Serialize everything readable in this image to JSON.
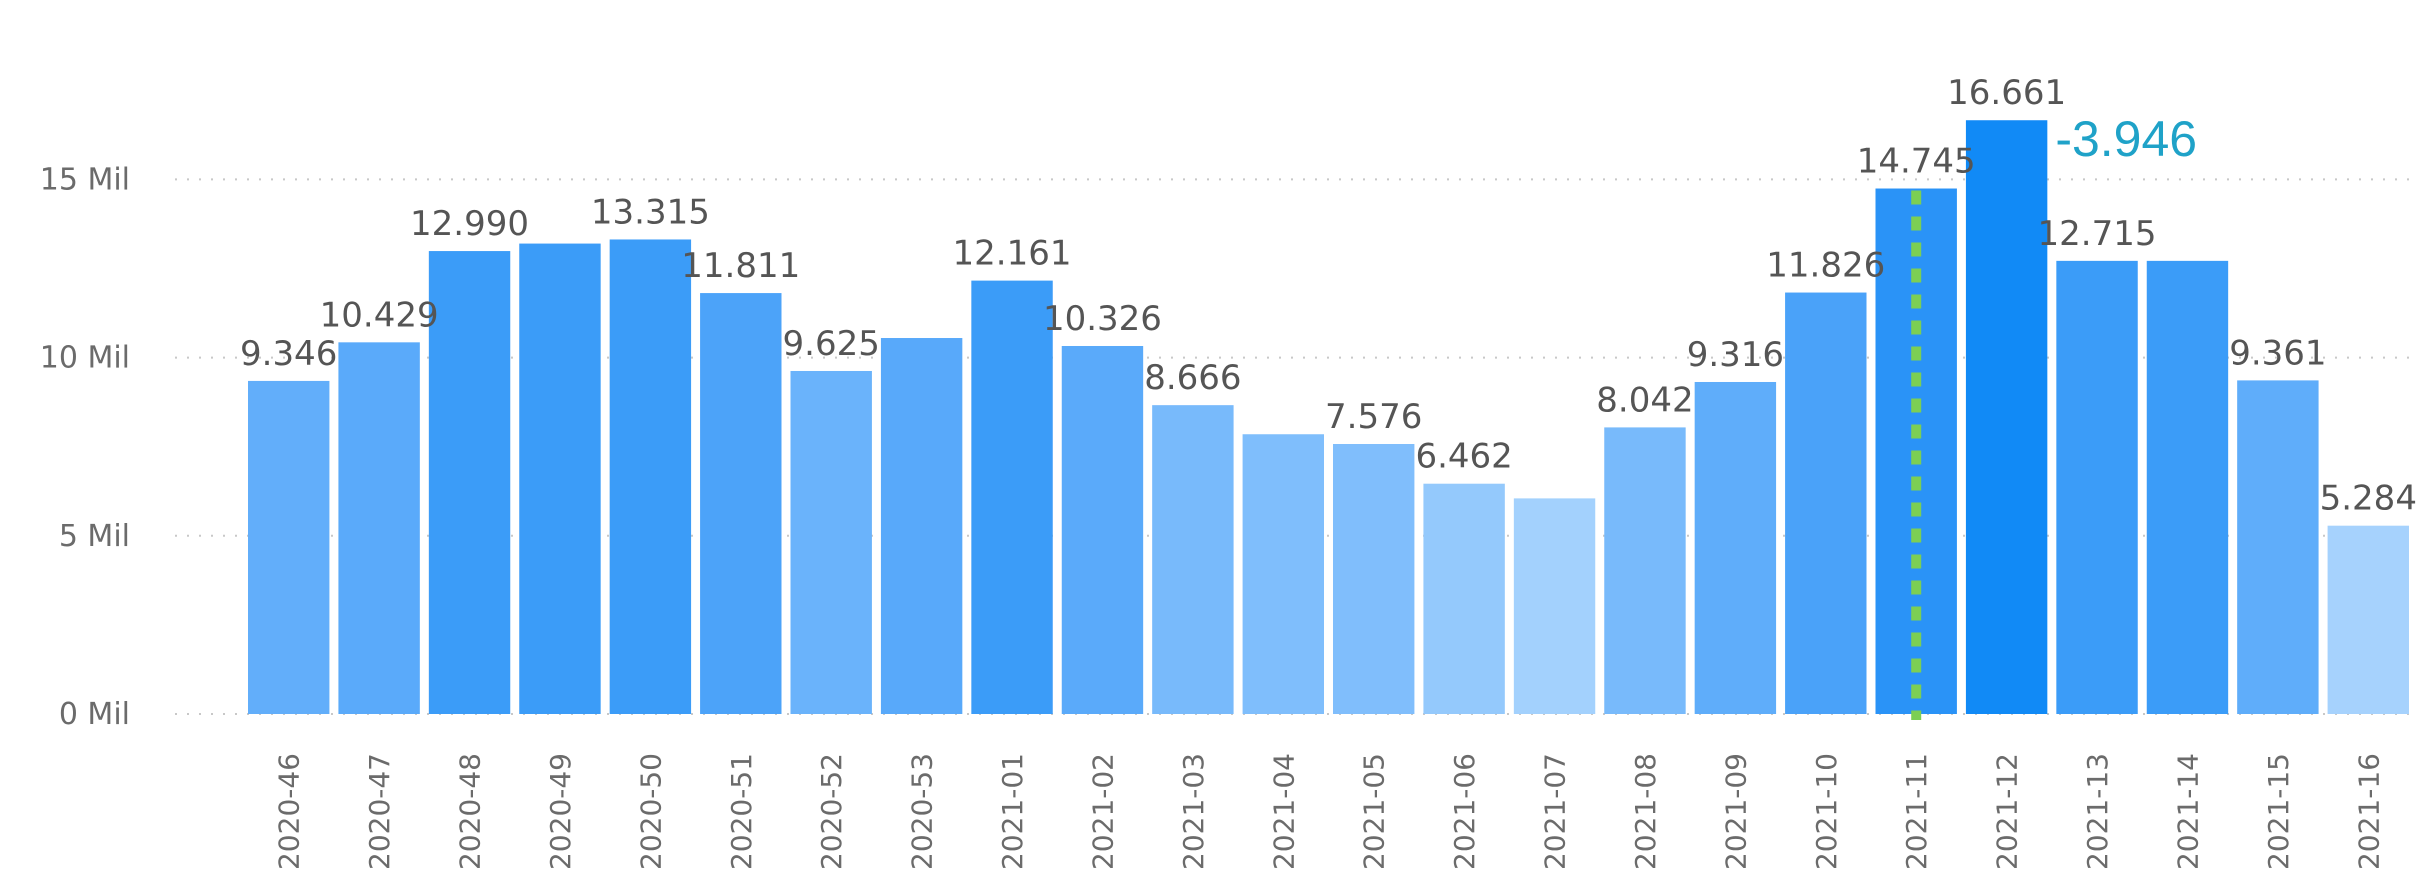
{
  "chart_data": {
    "type": "bar",
    "categories": [
      "2020-46",
      "2020-47",
      "2020-48",
      "2020-49",
      "2020-50",
      "2020-51",
      "2020-52",
      "2020-53",
      "2021-01",
      "2021-02",
      "2021-03",
      "2021-04",
      "2021-05",
      "2021-06",
      "2021-07",
      "2021-08",
      "2021-09",
      "2021-10",
      "2021-11",
      "2021-12",
      "2021-13",
      "2021-14",
      "2021-15",
      "2021-16"
    ],
    "values": [
      9.346,
      10.429,
      12.99,
      13.2,
      13.315,
      11.811,
      9.625,
      10.55,
      12.161,
      10.326,
      8.666,
      7.85,
      7.576,
      6.462,
      6.05,
      8.042,
      9.316,
      11.826,
      14.745,
      16.661,
      12.715,
      12.715,
      9.361,
      5.284
    ],
    "data_labels": [
      "9.346",
      "10.429",
      "12.990",
      "",
      "13.315",
      "11.811",
      "9.625",
      "",
      "12.161",
      "10.326",
      "8.666",
      "",
      "7.576",
      "6.462",
      "",
      "8.042",
      "9.316",
      "11.826",
      "14.745",
      "16.661",
      "12.715",
      "",
      "9.361",
      "5.284"
    ],
    "bar_colors": [
      "#62aefa",
      "#5aaafa",
      "#3b9cf8",
      "#3b9cf8",
      "#3b9cf8",
      "#4ca3f9",
      "#6ab3fb",
      "#58a9fa",
      "#3b9cf8",
      "#5aaafa",
      "#78bafb",
      "#7fbefc",
      "#80befc",
      "#94c9fc",
      "#a3d1fd",
      "#78bafb",
      "#5fadfa",
      "#4aa2f9",
      "#2a93f7",
      "#118af6",
      "#3b9cf8",
      "#3b9cf8",
      "#5fadfa",
      "#a6d2fd"
    ],
    "y_ticks": [
      {
        "value": 0,
        "label": "0 Mil"
      },
      {
        "value": 5,
        "label": "5 Mil"
      },
      {
        "value": 10,
        "label": "10 Mil"
      },
      {
        "value": 15,
        "label": "15 Mil"
      }
    ],
    "ylim": [
      0,
      18.8
    ],
    "grid": true,
    "annotation": {
      "text": "-3.946",
      "category": "2021-12",
      "color": "#1fa2c8"
    },
    "reference_line": {
      "category": "2021-11",
      "color": "#7ccf54",
      "style": "dotted"
    }
  }
}
